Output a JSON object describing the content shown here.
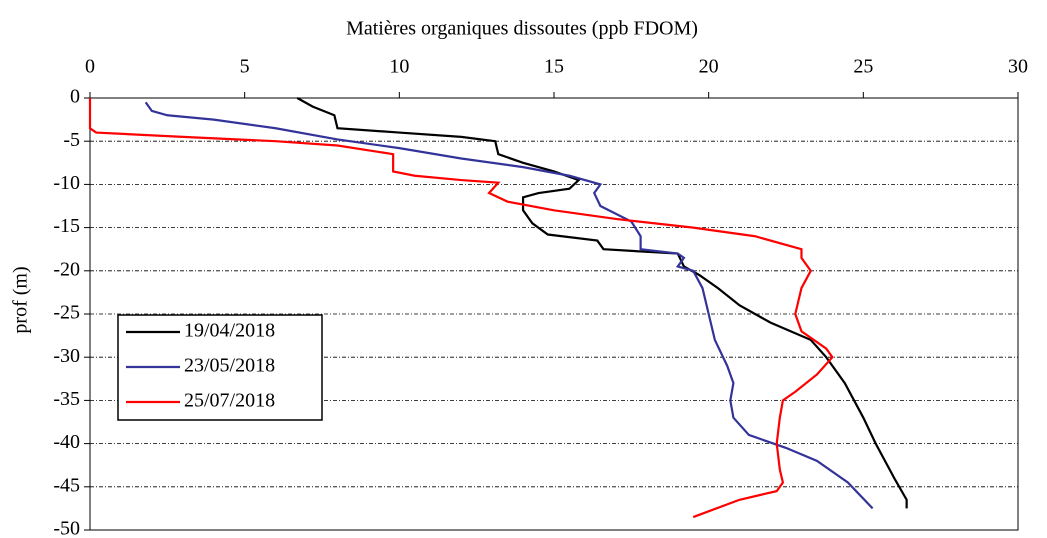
{
  "chart_data": {
    "type": "line",
    "title": "Matières organiques dissoutes (ppb FDOM)",
    "ylabel": "prof (m)",
    "xlim": [
      0,
      30
    ],
    "xticks": [
      0,
      5,
      10,
      15,
      20,
      25,
      30
    ],
    "ylim": [
      -50,
      0
    ],
    "yticks": [
      0,
      -5,
      -10,
      -15,
      -20,
      -25,
      -30,
      -35,
      -40,
      -45,
      -50
    ],
    "grid": true,
    "legend": "lower left",
    "series": [
      {
        "name": "19/04/2018",
        "color": "#000000",
        "x": [
          6.7,
          7.2,
          7.9,
          8,
          10,
          12,
          13.1,
          13.2,
          14,
          15,
          15.8,
          15.5,
          14.5,
          14,
          14,
          14.3,
          14.8,
          16.4,
          16.6,
          18,
          19,
          19.2,
          19.7,
          20.3,
          21,
          22,
          23.3,
          23.8,
          24.4,
          25,
          25.4,
          26,
          26.4,
          26.4
        ],
        "values": [
          0,
          -1,
          -2,
          -3.5,
          -4,
          -4.5,
          -5,
          -6.5,
          -7.5,
          -8.5,
          -9.5,
          -10.5,
          -11,
          -11.5,
          -13,
          -14.5,
          -15.8,
          -16.5,
          -17.5,
          -17.8,
          -18,
          -19.5,
          -20.5,
          -22,
          -24,
          -26,
          -28,
          -30,
          -33,
          -37,
          -40,
          -44,
          -46.5,
          -47.5
        ]
      },
      {
        "name": "23/05/2018",
        "color": "#333399",
        "x": [
          1.8,
          2,
          2.5,
          4,
          6,
          8,
          10,
          12,
          14,
          15.5,
          16,
          16.5,
          16.3,
          16.5,
          17.5,
          17.8,
          17.8,
          19,
          19.2,
          19,
          19.5,
          19.8,
          20,
          20.2,
          20.6,
          20.8,
          20.7,
          20.8,
          21.3,
          22.5,
          23.5,
          24.5,
          25.3
        ],
        "values": [
          -0.5,
          -1.5,
          -2,
          -2.5,
          -3.5,
          -4.8,
          -5.8,
          -7,
          -8,
          -9,
          -9.5,
          -10,
          -11,
          -12.5,
          -14.3,
          -16,
          -17.5,
          -18,
          -18.5,
          -19.5,
          -20,
          -22,
          -25,
          -28,
          -31,
          -33,
          -35,
          -37,
          -39,
          -40.5,
          -42,
          -44.5,
          -47.5
        ]
      },
      {
        "name": "25/07/2018",
        "color": "#ff0000",
        "x": [
          0,
          0,
          0.2,
          3,
          6,
          8,
          9.8,
          9.8,
          10.5,
          12,
          13.2,
          12.9,
          13.5,
          15,
          17,
          19.5,
          21.5,
          23,
          23,
          23.3,
          23,
          22.8,
          23,
          23.8,
          24,
          23.5,
          22.8,
          22.4,
          22.3,
          22.2,
          22.3,
          22.4,
          22.2,
          21,
          19.5
        ],
        "values": [
          0,
          -3.5,
          -4,
          -4.5,
          -5,
          -5.5,
          -6.5,
          -8.5,
          -9,
          -9.5,
          -9.8,
          -11,
          -12,
          -13,
          -14,
          -15,
          -16,
          -17.5,
          -18.5,
          -20,
          -22,
          -25,
          -27,
          -29,
          -30,
          -32,
          -34,
          -35,
          -37,
          -40,
          -43,
          -44.5,
          -45.5,
          -46.5,
          -48.5
        ]
      }
    ]
  }
}
